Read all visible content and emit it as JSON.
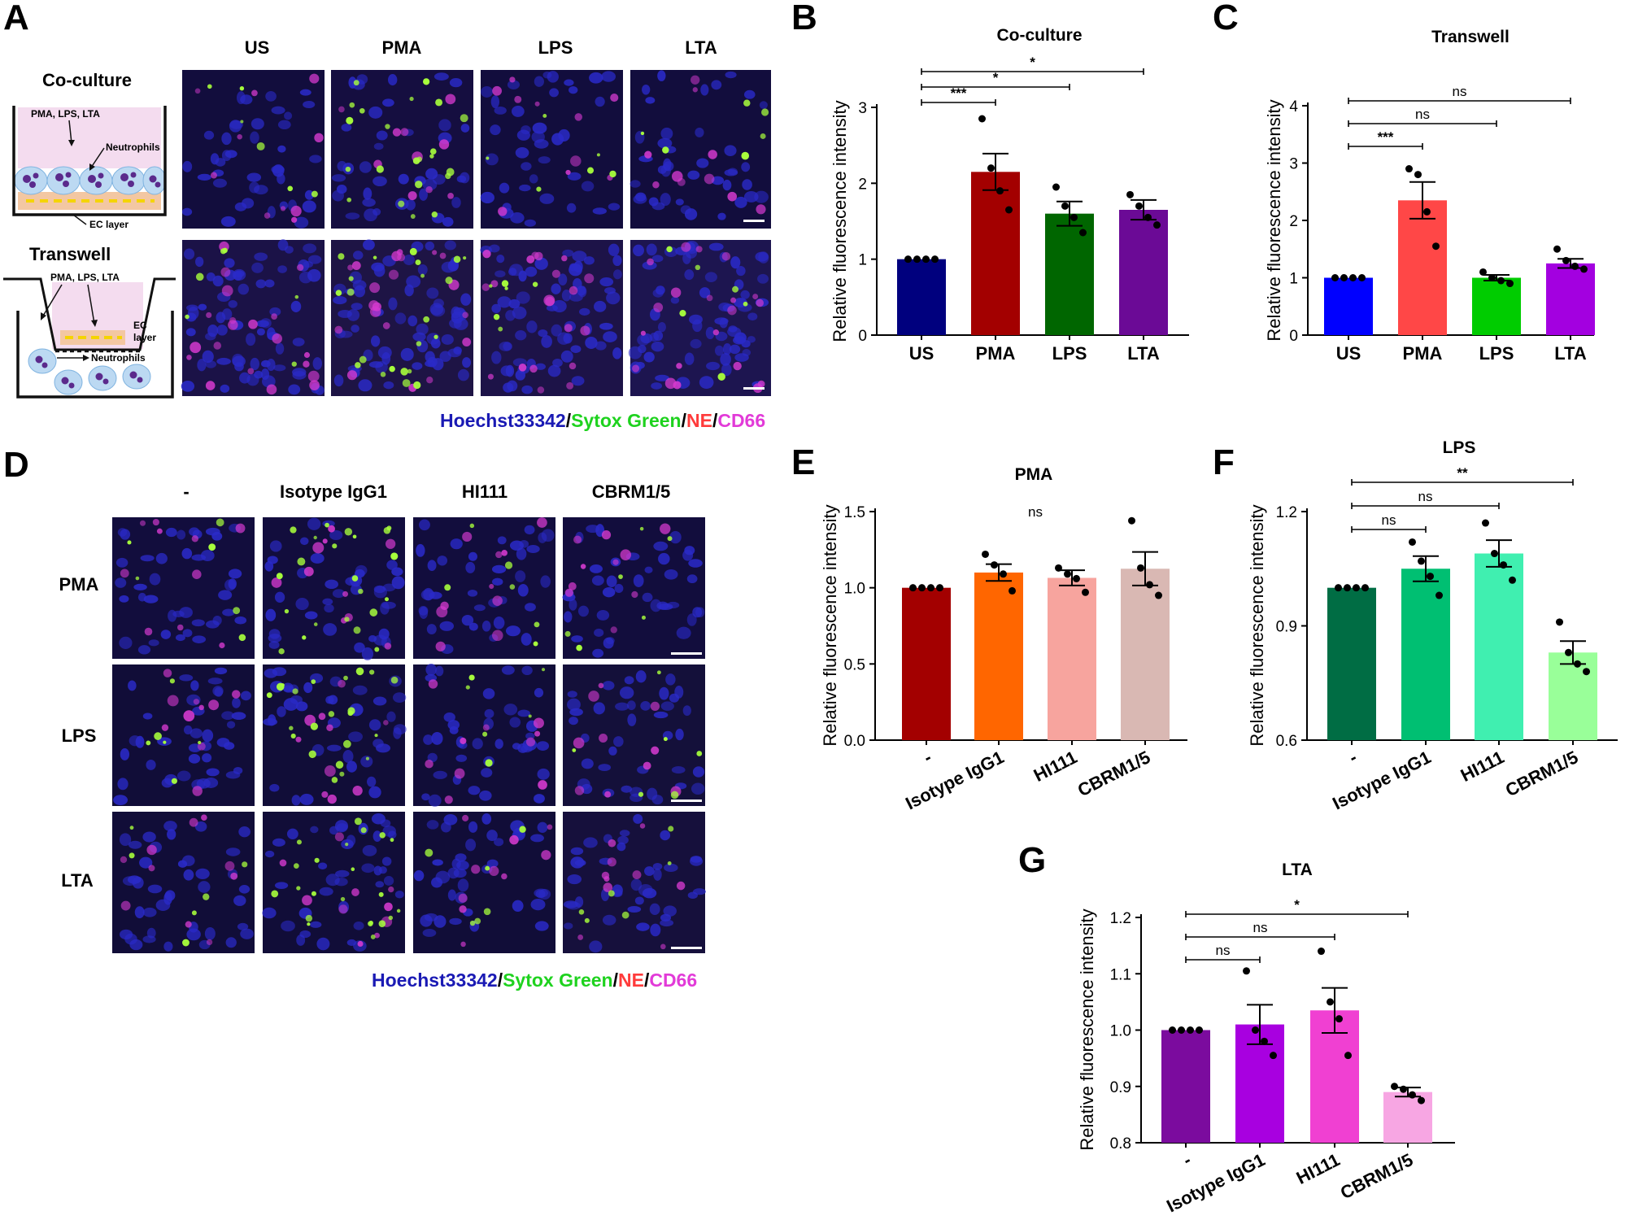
{
  "panels": {
    "A": {
      "label": "A",
      "coculture_title": "Co-culture",
      "transwell_title": "Transwell",
      "schematic_treatments": "PMA, LPS, LTA",
      "schematic_neutrophils": "Neutrophils",
      "schematic_ec_layer": "EC layer",
      "schematic_ec": "EC",
      "schematic_layer": "layer",
      "columns": [
        "US",
        "PMA",
        "LPS",
        "LTA"
      ],
      "stain_legend": [
        {
          "text": "Hoechst33342",
          "color": "#1a1ab4"
        },
        {
          "text": "/",
          "color": "#000000"
        },
        {
          "text": "Sytox Green",
          "color": "#1ed21e"
        },
        {
          "text": "/",
          "color": "#000000"
        },
        {
          "text": "NE",
          "color": "#ff3b3b"
        },
        {
          "text": "/",
          "color": "#000000"
        },
        {
          "text": "CD66",
          "color": "#e23ad8"
        }
      ]
    },
    "D": {
      "label": "D",
      "columns": [
        "-",
        "Isotype IgG1",
        "HI111",
        "CBRM1/5"
      ],
      "rows": [
        "PMA",
        "LPS",
        "LTA"
      ],
      "stain_legend": [
        {
          "text": "Hoechst33342",
          "color": "#1a1ab4"
        },
        {
          "text": "/",
          "color": "#000000"
        },
        {
          "text": "Sytox Green",
          "color": "#1ed21e"
        },
        {
          "text": "/",
          "color": "#000000"
        },
        {
          "text": "NE",
          "color": "#ff3b3b"
        },
        {
          "text": "/",
          "color": "#000000"
        },
        {
          "text": "CD66",
          "color": "#e23ad8"
        }
      ]
    }
  },
  "chart_data": [
    {
      "id": "B",
      "type": "bar",
      "title": "Co-culture",
      "ylabel": "Relative fluorescence intensity",
      "categories": [
        "US",
        "PMA",
        "LPS",
        "LTA"
      ],
      "values": [
        1.0,
        2.15,
        1.6,
        1.65
      ],
      "errors": [
        0.0,
        0.24,
        0.16,
        0.13
      ],
      "points": [
        [
          1.0,
          1.0,
          1.0,
          1.0
        ],
        [
          2.85,
          2.2,
          1.9,
          1.65
        ],
        [
          1.95,
          1.7,
          1.55,
          1.35
        ],
        [
          1.85,
          1.7,
          1.55,
          1.45
        ]
      ],
      "colors": [
        "#00007e",
        "#a30000",
        "#006600",
        "#6b0a96"
      ],
      "yticks": [
        0,
        1,
        2,
        3
      ],
      "ytick_labels": [
        "0",
        "1",
        "2",
        "3"
      ],
      "ylim": [
        0,
        3
      ],
      "comparisons": [
        {
          "from": 0,
          "to": 1,
          "label": "***"
        },
        {
          "from": 0,
          "to": 2,
          "label": "*"
        },
        {
          "from": 0,
          "to": 3,
          "label": "*"
        }
      ]
    },
    {
      "id": "C",
      "type": "bar",
      "title": "Transwell",
      "ylabel": "Relative fluorescence intensity",
      "categories": [
        "US",
        "PMA",
        "LPS",
        "LTA"
      ],
      "values": [
        1.0,
        2.35,
        1.0,
        1.25
      ],
      "errors": [
        0.0,
        0.32,
        0.05,
        0.08
      ],
      "points": [
        [
          1.0,
          1.0,
          1.0,
          1.0
        ],
        [
          2.9,
          2.8,
          2.15,
          1.55
        ],
        [
          1.1,
          1.0,
          0.95,
          0.9
        ],
        [
          1.5,
          1.3,
          1.2,
          1.15
        ]
      ],
      "colors": [
        "#0000ff",
        "#ff4747",
        "#00cc00",
        "#a300e0"
      ],
      "yticks": [
        0,
        1,
        2,
        3,
        4
      ],
      "ytick_labels": [
        "0",
        "1",
        "2",
        "3",
        "4"
      ],
      "ylim": [
        0,
        4
      ],
      "comparisons": [
        {
          "from": 0,
          "to": 1,
          "label": "***"
        },
        {
          "from": 0,
          "to": 2,
          "label": "ns"
        },
        {
          "from": 0,
          "to": 3,
          "label": "ns"
        }
      ]
    },
    {
      "id": "E",
      "type": "bar",
      "title": "PMA",
      "ylabel": "Relative fluorescence intensity",
      "categories": [
        "-",
        "Isotype IgG1",
        "HI111",
        "CBRM1/5"
      ],
      "values": [
        1.0,
        1.1,
        1.065,
        1.125
      ],
      "errors": [
        0.0,
        0.055,
        0.05,
        0.11
      ],
      "points": [
        [
          1.0,
          1.0,
          1.0,
          1.0
        ],
        [
          1.22,
          1.15,
          1.09,
          0.98
        ],
        [
          1.13,
          1.09,
          1.06,
          0.97
        ],
        [
          1.44,
          1.13,
          1.02,
          0.95
        ]
      ],
      "colors": [
        "#a30000",
        "#ff6600",
        "#f7a49e",
        "#d9b8b3"
      ],
      "yticks": [
        0.0,
        0.5,
        1.0,
        1.5
      ],
      "ytick_labels": [
        "0.0",
        "0.5",
        "1.0",
        "1.5"
      ],
      "ylim": [
        0,
        1.5
      ],
      "annotation": "ns",
      "comparisons": []
    },
    {
      "id": "F",
      "type": "bar",
      "title": "LPS",
      "ylabel": "Relative fluorescence intensity",
      "categories": [
        "-",
        "Isotype IgG1",
        "HI111",
        "CBRM1/5"
      ],
      "values": [
        1.0,
        1.05,
        1.09,
        0.83
      ],
      "errors": [
        0.0,
        0.033,
        0.035,
        0.03
      ],
      "points": [
        [
          1.0,
          1.0,
          1.0,
          1.0
        ],
        [
          1.12,
          1.07,
          1.03,
          0.98
        ],
        [
          1.17,
          1.09,
          1.06,
          1.02
        ],
        [
          0.91,
          0.83,
          0.8,
          0.78
        ]
      ],
      "colors": [
        "#006d44",
        "#00bf72",
        "#40efb0",
        "#99ff99"
      ],
      "yticks": [
        0.6,
        0.9,
        1.2
      ],
      "ytick_labels": [
        "0.6",
        "0.9",
        "1.2"
      ],
      "ylim": [
        0.6,
        1.2
      ],
      "comparisons": [
        {
          "from": 0,
          "to": 1,
          "label": "ns"
        },
        {
          "from": 0,
          "to": 2,
          "label": "ns"
        },
        {
          "from": 0,
          "to": 3,
          "label": "**"
        }
      ]
    },
    {
      "id": "G",
      "type": "bar",
      "title": "LTA",
      "ylabel": "Relative fluorescence intensity",
      "categories": [
        "-",
        "Isotype IgG1",
        "HI111",
        "CBRM1/5"
      ],
      "values": [
        1.0,
        1.01,
        1.035,
        0.89
      ],
      "errors": [
        0.0,
        0.035,
        0.04,
        0.008
      ],
      "points": [
        [
          1.0,
          1.0,
          1.0,
          1.0
        ],
        [
          1.105,
          1.0,
          0.98,
          0.955
        ],
        [
          1.14,
          1.05,
          1.02,
          0.955
        ],
        [
          0.9,
          0.895,
          0.885,
          0.875
        ]
      ],
      "colors": [
        "#7b0b9e",
        "#a800e0",
        "#f040d2",
        "#f7a6e3"
      ],
      "yticks": [
        0.8,
        0.9,
        1.0,
        1.1,
        1.2
      ],
      "ytick_labels": [
        "0.8",
        "0.9",
        "1.0",
        "1.1",
        "1.2"
      ],
      "ylim": [
        0.8,
        1.2
      ],
      "comparisons": [
        {
          "from": 0,
          "to": 1,
          "label": "ns"
        },
        {
          "from": 0,
          "to": 2,
          "label": "ns"
        },
        {
          "from": 0,
          "to": 3,
          "label": "*"
        }
      ]
    }
  ]
}
